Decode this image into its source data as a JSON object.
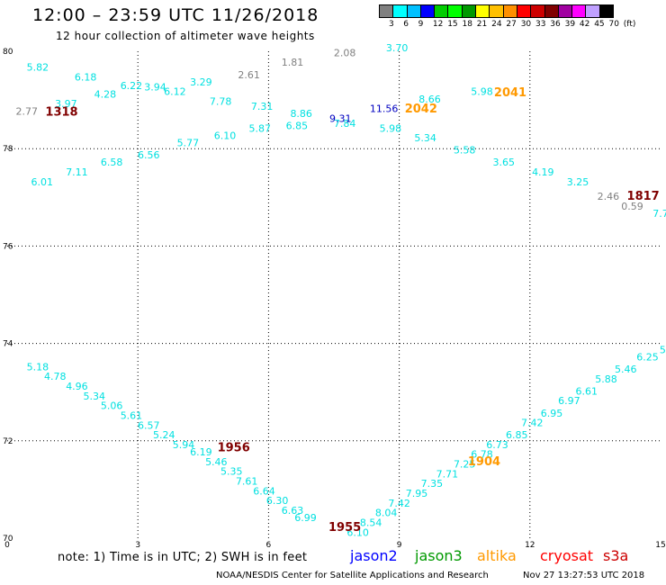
{
  "header": {
    "title": "12:00 – 23:59 UTC 11/26/2018",
    "subtitle": "12 hour collection of altimeter wave heights"
  },
  "scale": {
    "colors": [
      "#808080",
      "#00ffff",
      "#00c0ff",
      "#0000ff",
      "#00cd00",
      "#00ff00",
      "#009900",
      "#ffff00",
      "#ffc000",
      "#ff9000",
      "#ff0000",
      "#cd0000",
      "#800000",
      "#a000a0",
      "#ff00ff",
      "#c0a0ff",
      "#000000"
    ],
    "labels": [
      "3",
      "6",
      "9",
      "12",
      "15",
      "18",
      "21",
      "24",
      "27",
      "30",
      "33",
      "36",
      "39",
      "42",
      "45",
      "70",
      "(ft)"
    ]
  },
  "chart_data": {
    "type": "scatter",
    "xlabel": "",
    "ylabel": "",
    "xlim": [
      0,
      15
    ],
    "x_ticks": [
      "0",
      "3",
      "6",
      "9",
      "12",
      "15"
    ],
    "y_ticks": [
      "70",
      "72",
      "74",
      "76",
      "78",
      "80"
    ],
    "grid": true,
    "series": [
      {
        "color": "#00e0e0",
        "points": [
          {
            "label": "5.82",
            "x": 0.7,
            "y": 79.6
          },
          {
            "label": "6.18",
            "x": 1.8,
            "y": 79.4
          },
          {
            "label": "6.22",
            "x": 2.85,
            "y": 79.22
          },
          {
            "label": "3.94",
            "x": 3.4,
            "y": 79.2
          },
          {
            "label": "6.12",
            "x": 3.85,
            "y": 79.1
          },
          {
            "label": "3.29",
            "x": 4.45,
            "y": 79.3
          },
          {
            "label": "4.28",
            "x": 2.25,
            "y": 79.05
          },
          {
            "label": "3.97",
            "x": 1.35,
            "y": 78.85
          },
          {
            "label": "7.78",
            "x": 4.9,
            "y": 78.9
          },
          {
            "label": "7.31",
            "x": 5.85,
            "y": 78.8
          },
          {
            "label": "8.86",
            "x": 6.75,
            "y": 78.65
          },
          {
            "label": "6.85",
            "x": 6.65,
            "y": 78.4
          },
          {
            "label": "7.84",
            "x": 7.75,
            "y": 78.45
          },
          {
            "label": "5.87",
            "x": 5.8,
            "y": 78.35
          },
          {
            "label": "6.10",
            "x": 5.0,
            "y": 78.2
          },
          {
            "label": "5.77",
            "x": 4.15,
            "y": 78.05
          },
          {
            "label": "6.56",
            "x": 3.25,
            "y": 77.8
          },
          {
            "label": "6.58",
            "x": 2.4,
            "y": 77.65
          },
          {
            "label": "7.11",
            "x": 1.6,
            "y": 77.45
          },
          {
            "label": "6.01",
            "x": 0.8,
            "y": 77.25
          },
          {
            "label": "3.70",
            "x": 8.95,
            "y": 80.0
          },
          {
            "label": "8.66",
            "x": 9.7,
            "y": 78.95
          },
          {
            "label": "5.98",
            "x": 10.9,
            "y": 79.1
          },
          {
            "label": "5.98",
            "x": 8.8,
            "y": 78.35
          },
          {
            "label": "5.34",
            "x": 9.6,
            "y": 78.15
          },
          {
            "label": "5.58",
            "x": 10.5,
            "y": 77.9
          },
          {
            "label": "3.65",
            "x": 11.4,
            "y": 77.65
          },
          {
            "label": "4.19",
            "x": 12.3,
            "y": 77.45
          },
          {
            "label": "3.25",
            "x": 13.1,
            "y": 77.25
          },
          {
            "label": "5.18",
            "x": 0.7,
            "y": 73.45
          },
          {
            "label": "4.78",
            "x": 1.1,
            "y": 73.25
          },
          {
            "label": "4.96",
            "x": 1.6,
            "y": 73.05
          },
          {
            "label": "5.34",
            "x": 2.0,
            "y": 72.85
          },
          {
            "label": "5.06",
            "x": 2.4,
            "y": 72.65
          },
          {
            "label": "5.61",
            "x": 2.85,
            "y": 72.45
          },
          {
            "label": "6.57",
            "x": 3.25,
            "y": 72.25
          },
          {
            "label": "5.24",
            "x": 3.6,
            "y": 72.05
          },
          {
            "label": "5.94",
            "x": 4.05,
            "y": 71.85
          },
          {
            "label": "6.19",
            "x": 4.45,
            "y": 71.7
          },
          {
            "label": "5.46",
            "x": 4.8,
            "y": 71.5
          },
          {
            "label": "5.35",
            "x": 5.15,
            "y": 71.3
          },
          {
            "label": "7.61",
            "x": 5.5,
            "y": 71.1
          },
          {
            "label": "6.64",
            "x": 5.9,
            "y": 70.9
          },
          {
            "label": "6.30",
            "x": 6.2,
            "y": 70.7
          },
          {
            "label": "6.63",
            "x": 6.55,
            "y": 70.5
          },
          {
            "label": "6.99",
            "x": 6.85,
            "y": 70.35
          },
          {
            "label": "6.10",
            "x": 8.05,
            "y": 70.05
          },
          {
            "label": "8.54",
            "x": 8.35,
            "y": 70.25
          },
          {
            "label": "8.04",
            "x": 8.7,
            "y": 70.45
          },
          {
            "label": "7.42",
            "x": 9.0,
            "y": 70.65
          },
          {
            "label": "7.95",
            "x": 9.4,
            "y": 70.85
          },
          {
            "label": "7.35",
            "x": 9.75,
            "y": 71.05
          },
          {
            "label": "7.71",
            "x": 10.1,
            "y": 71.25
          },
          {
            "label": "7.25",
            "x": 10.5,
            "y": 71.45
          },
          {
            "label": "6.78",
            "x": 10.9,
            "y": 71.65
          },
          {
            "label": "6.73",
            "x": 11.25,
            "y": 71.85
          },
          {
            "label": "6.85",
            "x": 11.7,
            "y": 72.05
          },
          {
            "label": "7.42",
            "x": 12.05,
            "y": 72.3
          },
          {
            "label": "6.95",
            "x": 12.5,
            "y": 72.5
          },
          {
            "label": "6.97",
            "x": 12.9,
            "y": 72.75
          },
          {
            "label": "6.61",
            "x": 13.3,
            "y": 72.95
          },
          {
            "label": "5.88",
            "x": 13.75,
            "y": 73.2
          },
          {
            "label": "5.46",
            "x": 14.2,
            "y": 73.4
          },
          {
            "label": "6.25",
            "x": 14.7,
            "y": 73.65
          },
          {
            "label": "5",
            "x": 15.05,
            "y": 73.8
          },
          {
            "label": "7.7",
            "x": 15.0,
            "y": 76.6
          }
        ]
      },
      {
        "color": "#808080",
        "points": [
          {
            "label": "2.77",
            "x": 0.45,
            "y": 78.7
          },
          {
            "label": "2.61",
            "x": 5.55,
            "y": 79.45
          },
          {
            "label": "1.81",
            "x": 6.55,
            "y": 79.7
          },
          {
            "label": "2.08",
            "x": 7.75,
            "y": 79.9
          },
          {
            "label": "2.46",
            "x": 13.8,
            "y": 76.95
          },
          {
            "label": "0.59",
            "x": 14.35,
            "y": 76.75
          }
        ]
      },
      {
        "color": "#0000c0",
        "points": [
          {
            "label": "9.31",
            "x": 7.65,
            "y": 78.55
          },
          {
            "label": "11.56",
            "x": 8.65,
            "y": 78.75
          }
        ]
      }
    ],
    "pass_labels": [
      {
        "label": "1318",
        "x": 1.25,
        "y": 78.68,
        "color": "#800000"
      },
      {
        "label": "2042",
        "x": 9.5,
        "y": 78.74,
        "color": "#ff9900"
      },
      {
        "label": "2041",
        "x": 11.55,
        "y": 79.08,
        "color": "#ff9900"
      },
      {
        "label": "1817",
        "x": 14.6,
        "y": 76.95,
        "color": "#800000"
      },
      {
        "label": "1956",
        "x": 5.2,
        "y": 71.78,
        "color": "#800000"
      },
      {
        "label": "1955",
        "x": 7.75,
        "y": 70.15,
        "color": "#800000"
      },
      {
        "label": "1904",
        "x": 10.95,
        "y": 71.5,
        "color": "#ff9900"
      }
    ]
  },
  "footer": {
    "note": "note:  1) Time is in UTC; 2) SWH is in feet",
    "satellites": [
      {
        "name": "jason2",
        "color": "#0000ff"
      },
      {
        "name": "jason3",
        "color": "#009900"
      },
      {
        "name": "altika",
        "color": "#ff9900"
      },
      {
        "name": "cryosat",
        "color": "#ff0000"
      },
      {
        "name": "s3a",
        "color": "#cc0000"
      }
    ],
    "credit": "NOAA/NESDIS Center for Satellite Applications and Research",
    "timestamp": "Nov 27 13:27:53 UTC 2018"
  }
}
